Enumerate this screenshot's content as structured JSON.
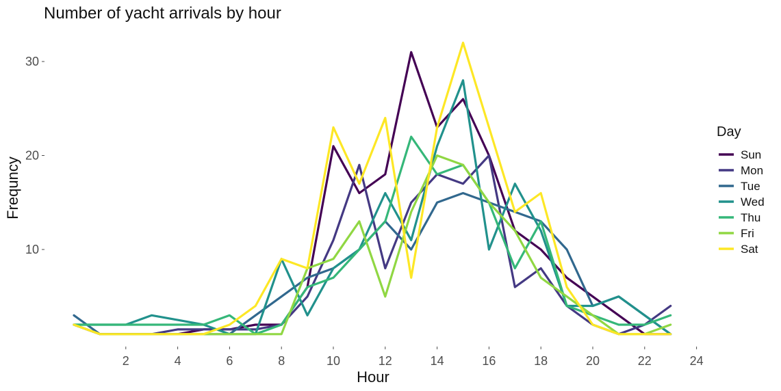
{
  "chart_data": {
    "type": "line",
    "title": "Number of yacht arrivals by hour",
    "xlabel": "Hour",
    "ylabel": "Frequncy",
    "legend_title": "Day",
    "legend_position": "right",
    "grid": false,
    "xlim": [
      0,
      24
    ],
    "ylim": [
      1,
      32
    ],
    "x_ticks": [
      2,
      4,
      6,
      8,
      10,
      12,
      14,
      16,
      18,
      20,
      22,
      24
    ],
    "y_ticks": [
      10,
      20,
      30
    ],
    "x": [
      0,
      1,
      2,
      3,
      4,
      5,
      6,
      7,
      8,
      9,
      10,
      11,
      12,
      13,
      14,
      15,
      16,
      17,
      18,
      19,
      20,
      21,
      22,
      23
    ],
    "series": [
      {
        "name": "Sun",
        "color": "#440154",
        "values": [
          2,
          1,
          1,
          1,
          1,
          1.5,
          1.5,
          2,
          2,
          6,
          21,
          16,
          18,
          31,
          23,
          26,
          20,
          12,
          10,
          7,
          5,
          3,
          1,
          1
        ]
      },
      {
        "name": "Mon",
        "color": "#443983",
        "values": [
          2,
          1,
          1,
          1,
          1.5,
          1.5,
          1.5,
          1.5,
          2,
          5,
          11,
          19,
          8,
          15,
          18,
          17,
          20,
          6,
          8,
          4,
          2,
          1,
          2,
          4
        ]
      },
      {
        "name": "Tue",
        "color": "#31688e",
        "values": [
          3,
          1,
          1,
          1,
          1,
          1,
          1,
          3,
          5,
          7,
          8,
          10,
          13,
          10,
          15,
          16,
          15,
          14,
          13,
          10,
          4,
          5,
          3,
          1
        ]
      },
      {
        "name": "Wed",
        "color": "#21918c",
        "values": [
          2,
          2,
          2,
          3,
          2.5,
          2,
          1,
          1,
          9,
          3,
          8,
          10,
          16,
          11,
          21,
          28,
          10,
          17,
          12,
          4,
          4,
          5,
          3,
          1
        ]
      },
      {
        "name": "Thu",
        "color": "#35b779",
        "values": [
          2,
          2,
          2,
          2,
          2,
          2,
          3,
          1,
          2,
          6,
          7,
          10,
          13,
          22,
          18,
          19,
          15,
          8,
          13,
          4,
          3,
          2,
          2,
          3
        ]
      },
      {
        "name": "Fri",
        "color": "#90d743",
        "values": [
          2,
          1,
          1,
          1,
          1,
          1,
          1,
          1,
          1,
          8,
          9,
          13,
          5,
          14,
          20,
          19,
          15,
          12,
          7,
          5,
          3,
          1,
          1,
          2
        ]
      },
      {
        "name": "Sat",
        "color": "#fde725",
        "values": [
          2,
          1,
          1,
          1,
          1,
          1,
          2,
          4,
          9,
          8,
          23,
          17,
          24,
          7,
          23,
          32,
          23,
          14,
          16,
          6,
          2,
          1,
          1,
          1
        ]
      }
    ]
  }
}
